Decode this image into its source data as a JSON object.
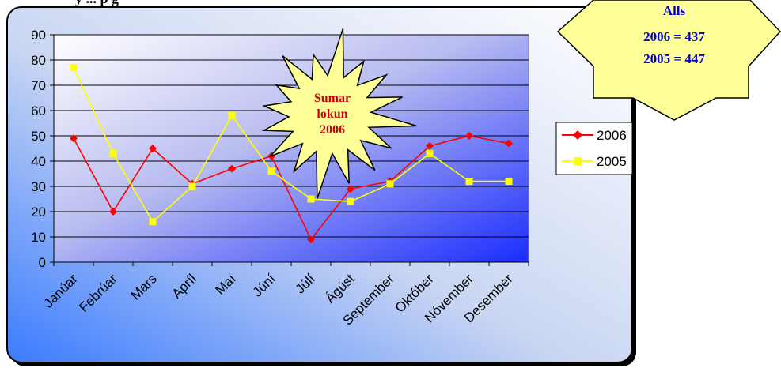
{
  "chart_data": {
    "type": "line",
    "title": "",
    "xlabel": "",
    "ylabel": "",
    "ylim": [
      0,
      90
    ],
    "yticks": [
      0,
      10,
      20,
      30,
      40,
      50,
      60,
      70,
      80,
      90
    ],
    "grid": true,
    "legend_position": "right",
    "categories": [
      "Janúar",
      "Febrúar",
      "Mars",
      "Apríl",
      "Maí",
      "Júní",
      "Júlí",
      "Ágúst",
      "September",
      "Október",
      "Nóvember",
      "Desember"
    ],
    "series": [
      {
        "name": "2006",
        "color": "#ff0000",
        "marker": "diamond",
        "values": [
          49,
          20,
          45,
          31,
          37,
          42,
          9,
          29,
          32,
          46,
          50,
          47
        ]
      },
      {
        "name": "2005",
        "color": "#ffff00",
        "marker": "square",
        "values": [
          77,
          43,
          16,
          30,
          58,
          36,
          25,
          24,
          31,
          43,
          32,
          32
        ]
      }
    ]
  },
  "callouts": {
    "starburst": {
      "lines": [
        "Sumar",
        "lokun",
        "2006"
      ],
      "text_color": "#cc0000",
      "fill": "#ffff99"
    },
    "totals": {
      "lines": [
        "Alls",
        "2006 = 437",
        "2005 = 447"
      ],
      "text_color": "#0000cc",
      "fill": "#ffff99"
    }
  },
  "header_text": "y ... p g"
}
